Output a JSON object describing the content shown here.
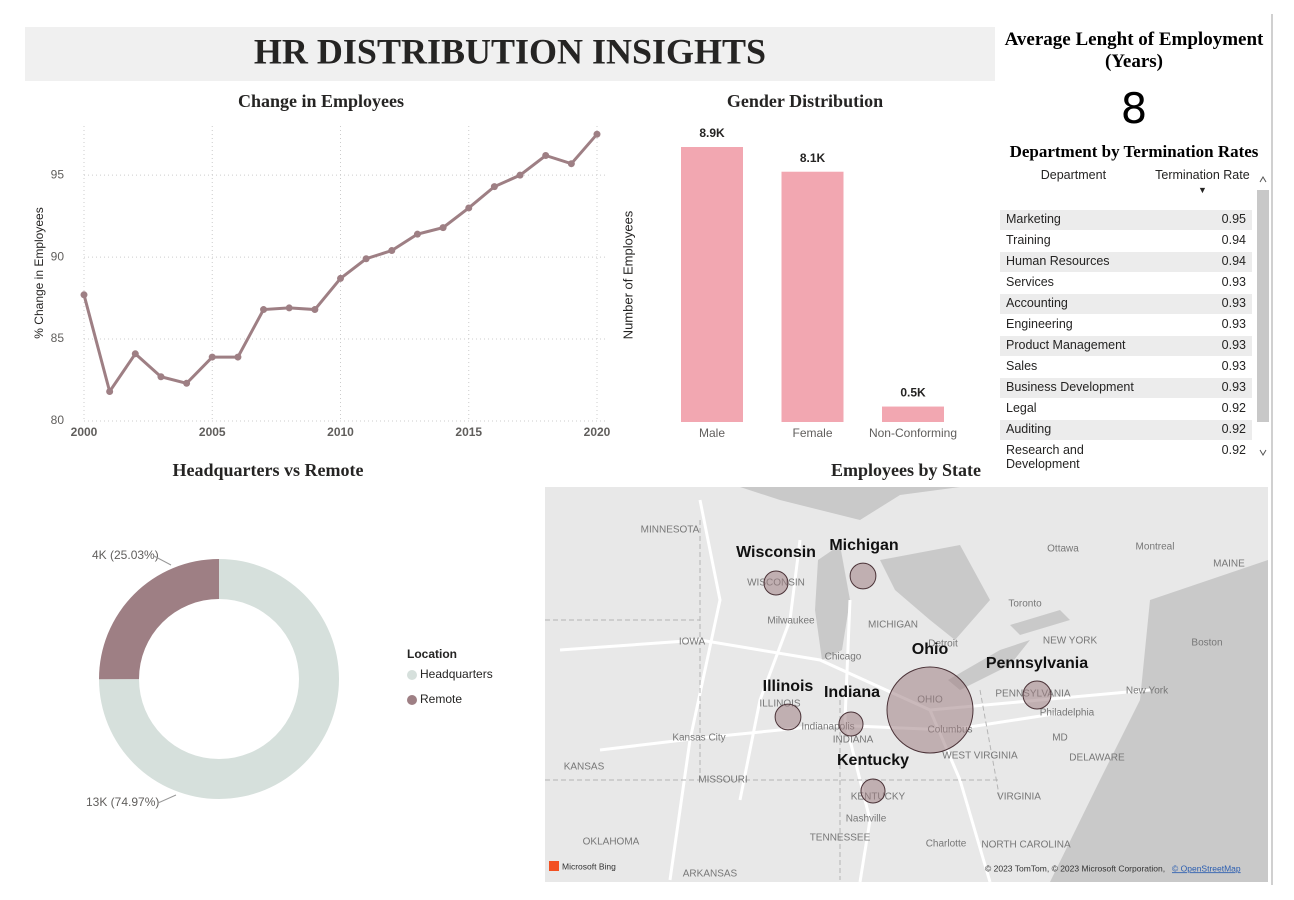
{
  "title": "HR DISTRIBUTION INSIGHTS",
  "kpi": {
    "title": "Average Lenght of Employment (Years)",
    "value": 8
  },
  "table": {
    "title": "Department by Termination Rates",
    "columns": [
      "Department",
      "Termination Rate"
    ],
    "rows": [
      [
        "Marketing",
        0.95
      ],
      [
        "Training",
        0.94
      ],
      [
        "Human Resources",
        0.94
      ],
      [
        "Services",
        0.93
      ],
      [
        "Accounting",
        0.93
      ],
      [
        "Engineering",
        0.93
      ],
      [
        "Product Management",
        0.93
      ],
      [
        "Sales",
        0.93
      ],
      [
        "Business Development",
        0.93
      ],
      [
        "Legal",
        0.92
      ],
      [
        "Auditing",
        0.92
      ],
      [
        "Research and Development",
        0.92
      ]
    ]
  },
  "chart_data": [
    {
      "type": "line",
      "title": "Change in Employees",
      "y_label": "% Change in Employees",
      "x": [
        2000,
        2001,
        2002,
        2003,
        2004,
        2005,
        2006,
        2007,
        2008,
        2009,
        2010,
        2011,
        2012,
        2013,
        2014,
        2015,
        2016,
        2017,
        2018,
        2019,
        2020
      ],
      "values": [
        87.7,
        81.8,
        84.1,
        82.7,
        82.3,
        83.9,
        83.9,
        86.8,
        86.9,
        86.8,
        88.7,
        89.9,
        90.4,
        91.4,
        91.8,
        93.0,
        94.3,
        95.0,
        96.2,
        95.7,
        97.5
      ],
      "color": "#9e7f84",
      "xlim": [
        2000,
        2020
      ],
      "xticks": [
        2000,
        2005,
        2010,
        2015,
        2020
      ],
      "ylim": [
        80,
        98
      ],
      "yticks": [
        80,
        85,
        90,
        95
      ],
      "grid": true
    },
    {
      "type": "bar",
      "title": "Gender Distribution",
      "y_label": "Number of Employees",
      "categories": [
        "Male",
        "Female",
        "Non-Conforming"
      ],
      "values": [
        8900,
        8100,
        500
      ],
      "value_labels": [
        "8.9K",
        "8.1K",
        "0.5K"
      ],
      "color": "#f2a7b1"
    },
    {
      "type": "donut",
      "title": "Headquarters vs Remote",
      "legend_title": "Location",
      "categories": [
        "Headquarters",
        "Remote"
      ],
      "values": [
        74.97,
        25.03
      ],
      "value_labels": [
        "13K (74.97%)",
        "4K (25.03%)"
      ],
      "colors": [
        "#d6e0dc",
        "#9e7f84"
      ]
    },
    {
      "type": "bubble_map",
      "title": "Employees by State",
      "categories": [
        "Wisconsin",
        "Michigan",
        "Ohio",
        "Pennsylvania",
        "Illinois",
        "Indiana",
        "Kentucky"
      ],
      "values": [
        1000,
        1150,
        12800,
        1350,
        1150,
        1000,
        1000
      ],
      "color": "#9e7f84",
      "base_labels": [
        "MINNESOTA",
        "Ottawa",
        "Montreal",
        "MAINE",
        "WISCONSIN",
        "Milwaukee",
        "MICHIGAN",
        "Toronto",
        "IOWA",
        "Chicago",
        "Detroit",
        "NEW YORK",
        "Boston",
        "ILLINOIS",
        "Kansas City",
        "Indianapolis",
        "INDIANA",
        "OHIO",
        "Columbus",
        "PENNSYLVANIA",
        "New York",
        "Philadelphia",
        "MD",
        "DELAWARE",
        "KANSAS",
        "MISSOURI",
        "WEST VIRGINIA",
        "KENTUCKY",
        "VIRGINIA",
        "Nashville",
        "TENNESSEE",
        "OKLAHOMA",
        "Charlotte",
        "NORTH CAROLINA",
        "ARKANSAS"
      ],
      "attribution": [
        "Microsoft Bing",
        "© 2023 TomTom, © 2023 Microsoft Corporation,",
        "© OpenStreetMap"
      ]
    }
  ]
}
